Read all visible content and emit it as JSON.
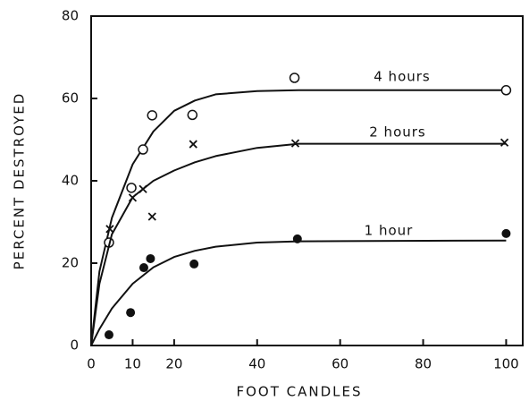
{
  "chart_data": {
    "type": "scatter",
    "xlabel": "FOOT CANDLES",
    "ylabel": "PERCENT DESTROYED",
    "xlim": [
      0,
      104
    ],
    "ylim": [
      0,
      80
    ],
    "xticks": [
      0,
      10,
      20,
      40,
      60,
      80,
      100
    ],
    "yticks": [
      0,
      20,
      40,
      60,
      80
    ],
    "curve_x": [
      0,
      2,
      5,
      10,
      15,
      20,
      25,
      30,
      40,
      50,
      100
    ],
    "series": [
      {
        "name": "4 hours",
        "marker": "open-circle",
        "color": "#111111",
        "x": [
          4.3,
          9.7,
          12.5,
          14.7,
          24.4,
          49,
          100
        ],
        "values": [
          25,
          38.3,
          47.6,
          55.9,
          56,
          65,
          62
        ],
        "curve_values": [
          0,
          18,
          31,
          44,
          52,
          57,
          59.5,
          61,
          61.8,
          62,
          62
        ]
      },
      {
        "name": "2 hours",
        "marker": "x",
        "color": "#111111",
        "x": [
          4.5,
          10,
          12.5,
          14.7,
          24.6,
          49.2,
          99.6
        ],
        "values": [
          28.3,
          35.9,
          38,
          31.3,
          48.9,
          49.1,
          49.3
        ],
        "curve_values": [
          0,
          15,
          27,
          36,
          40,
          42.5,
          44.5,
          46,
          48,
          49,
          49
        ]
      },
      {
        "name": "1 hour",
        "marker": "filled-circle",
        "color": "#111111",
        "x": [
          4.3,
          9.5,
          12.7,
          14.3,
          24.8,
          49.7,
          100
        ],
        "values": [
          2.6,
          8,
          18.9,
          21.1,
          19.8,
          25.9,
          27.2
        ],
        "curve_values": [
          0,
          4,
          9,
          15,
          19,
          21.5,
          23,
          24,
          25,
          25.3,
          25.5
        ]
      }
    ]
  }
}
